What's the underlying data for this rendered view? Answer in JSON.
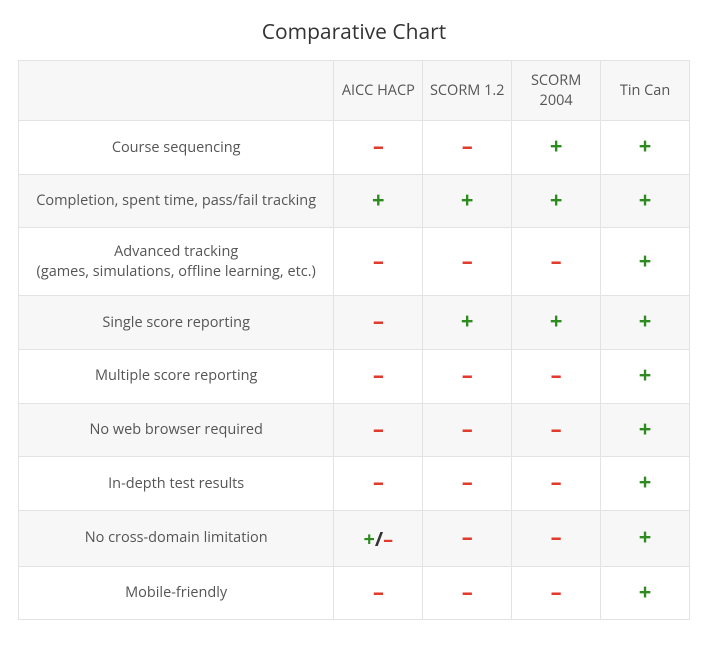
{
  "title": "Comparative Chart",
  "type": "table",
  "columns": [
    "AICC HACP",
    "SCORM 1.2",
    "SCORM 2004",
    "Tin Can"
  ],
  "symbols": {
    "plus": {
      "glyph": "+",
      "color": "#2e8b1f"
    },
    "minus": {
      "glyph": "–",
      "color": "#e23b2e"
    },
    "mixed": {
      "glyph": "+/–",
      "plus_color": "#2e8b1f",
      "minus_color": "#e23b2e"
    }
  },
  "rows": [
    {
      "feature": "Course sequencing",
      "values": [
        "minus",
        "minus",
        "plus",
        "plus"
      ]
    },
    {
      "feature": "Completion, spent time, pass/fail tracking",
      "values": [
        "plus",
        "plus",
        "plus",
        "plus"
      ]
    },
    {
      "feature": "Advanced tracking\n(games, simulations, offline learning, etc.)",
      "values": [
        "minus",
        "minus",
        "minus",
        "plus"
      ]
    },
    {
      "feature": "Single score reporting",
      "values": [
        "minus",
        "plus",
        "plus",
        "plus"
      ]
    },
    {
      "feature": "Multiple score reporting",
      "values": [
        "minus",
        "minus",
        "minus",
        "plus"
      ]
    },
    {
      "feature": "No web browser required",
      "values": [
        "minus",
        "minus",
        "minus",
        "plus"
      ]
    },
    {
      "feature": "In-depth test results",
      "values": [
        "minus",
        "minus",
        "minus",
        "plus"
      ]
    },
    {
      "feature": "No cross-domain limitation",
      "values": [
        "mixed",
        "minus",
        "minus",
        "plus"
      ]
    },
    {
      "feature": "Mobile-friendly",
      "values": [
        "minus",
        "minus",
        "minus",
        "plus"
      ]
    }
  ],
  "styling": {
    "background_color": "#ffffff",
    "alt_row_color": "#f7f7f7",
    "border_color": "#e3e3e3",
    "text_color": "#555555",
    "title_fontsize": 21,
    "cell_fontsize": 14.5,
    "mark_fontsize": 22,
    "column_widths_pct": [
      47,
      13.25,
      13.25,
      13.25,
      13.25
    ]
  }
}
